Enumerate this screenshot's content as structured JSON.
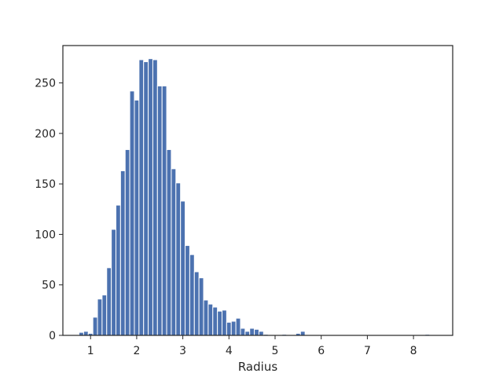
{
  "chart_data": {
    "type": "bar",
    "title": "",
    "xlabel": "Radius",
    "ylabel": "",
    "xlim": [
      0.4,
      8.85
    ],
    "ylim": [
      0,
      287
    ],
    "xticks": [
      1,
      2,
      3,
      4,
      5,
      6,
      7,
      8
    ],
    "yticks": [
      0,
      50,
      100,
      150,
      200,
      250
    ],
    "grid": false,
    "bar_color": "#4c72b0",
    "bin_start": 0.75,
    "bin_width": 0.1,
    "counts": [
      3,
      4,
      2,
      18,
      36,
      40,
      67,
      105,
      129,
      163,
      184,
      242,
      233,
      273,
      271,
      274,
      273,
      247,
      247,
      184,
      165,
      151,
      133,
      89,
      80,
      63,
      57,
      35,
      31,
      28,
      24,
      25,
      13,
      14,
      17,
      7,
      4,
      7,
      6,
      4,
      1,
      0,
      0,
      0,
      1,
      0,
      0,
      2,
      4,
      0,
      0,
      0,
      0,
      0,
      0,
      0,
      0,
      0,
      0,
      0,
      0,
      0,
      0,
      0,
      0,
      0,
      0,
      0,
      0,
      0,
      0,
      0,
      0,
      0,
      0,
      1
    ]
  }
}
